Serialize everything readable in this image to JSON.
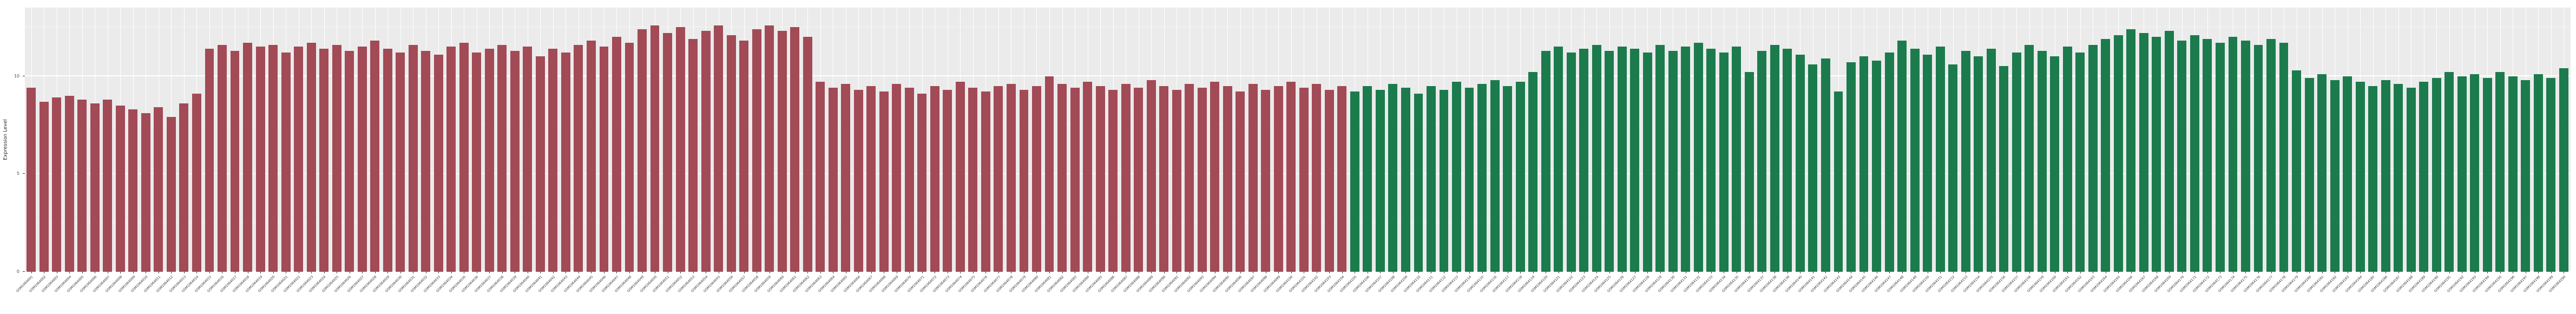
{
  "chart_data": {
    "type": "bar",
    "title": "",
    "xlabel": "",
    "ylabel": "Expression Level",
    "ylim": [
      0,
      13.5
    ],
    "yticks": [
      0,
      5,
      10
    ],
    "minor_yticks": [
      2.5,
      7.5,
      12.5
    ],
    "panel_background": "#EBEBEB",
    "grid_color": "#FFFFFF",
    "legend_position": "none",
    "bar_count": 200,
    "groups": [
      {
        "name": "sample-group-red",
        "color": "#A24A56",
        "count": 104
      },
      {
        "name": "sample-group-green",
        "color": "#1B7B4D",
        "count": 96
      }
    ],
    "categories": [
      "GSM1064001",
      "GSM1064002",
      "GSM1064003",
      "GSM1064004",
      "GSM1064005",
      "GSM1064006",
      "GSM1064007",
      "GSM1064008",
      "GSM1064009",
      "GSM1064010",
      "GSM1064011",
      "GSM1064012",
      "GSM1064013",
      "GSM1064014",
      "GSM1064015",
      "GSM1064016",
      "GSM1064017",
      "GSM1064018",
      "GSM1064019",
      "GSM1064020",
      "GSM1064021",
      "GSM1064022",
      "GSM1064023",
      "GSM1064024",
      "GSM1064025",
      "GSM1064026",
      "GSM1064027",
      "GSM1064028",
      "GSM1064029",
      "GSM1064030",
      "GSM1064031",
      "GSM1064032",
      "GSM1064033",
      "GSM1064034",
      "GSM1064035",
      "GSM1064036",
      "GSM1064037",
      "GSM1064038",
      "GSM1064039",
      "GSM1064040",
      "GSM1064041",
      "GSM1064042",
      "GSM1064043",
      "GSM1064044",
      "GSM1064045",
      "GSM1064046",
      "GSM1064047",
      "GSM1064048",
      "GSM1064049",
      "GSM1064050",
      "GSM1064051",
      "GSM1064052",
      "GSM1064053",
      "GSM1064054",
      "GSM1064055",
      "GSM1064056",
      "GSM1064057",
      "GSM1064058",
      "GSM1064059",
      "GSM1064060",
      "GSM1064061",
      "GSM1064062",
      "GSM1064063",
      "GSM1064064",
      "GSM1064065",
      "GSM1064066",
      "GSM1064067",
      "GSM1064068",
      "GSM1064069",
      "GSM1064070",
      "GSM1064071",
      "GSM1064072",
      "GSM1064073",
      "GSM1064074",
      "GSM1064075",
      "GSM1064076",
      "GSM1064077",
      "GSM1064078",
      "GSM1064079",
      "GSM1064080",
      "GSM1064081",
      "GSM1064082",
      "GSM1064083",
      "GSM1064084",
      "GSM1064085",
      "GSM1064086",
      "GSM1064087",
      "GSM1064088",
      "GSM1064089",
      "GSM1064090",
      "GSM1064091",
      "GSM1064092",
      "GSM1064093",
      "GSM1064094",
      "GSM1064095",
      "GSM1064096",
      "GSM1064097",
      "GSM1064098",
      "GSM1064099",
      "GSM1064100",
      "GSM1064101",
      "GSM1064102",
      "GSM1064103",
      "GSM1064104",
      "GSM1064105",
      "GSM1064106",
      "GSM1064107",
      "GSM1064108",
      "GSM1064109",
      "GSM1064110",
      "GSM1064111",
      "GSM1064112",
      "GSM1064113",
      "GSM1064114",
      "GSM1064115",
      "GSM1064116",
      "GSM1064117",
      "GSM1064118",
      "GSM1064119",
      "GSM1064120",
      "GSM1064121",
      "GSM1064122",
      "GSM1064123",
      "GSM1064124",
      "GSM1064125",
      "GSM1064126",
      "GSM1064127",
      "GSM1064128",
      "GSM1064129",
      "GSM1064130",
      "GSM1064131",
      "GSM1064132",
      "GSM1064133",
      "GSM1064134",
      "GSM1064135",
      "GSM1064136",
      "GSM1064137",
      "GSM1064138",
      "GSM1064139",
      "GSM1064140",
      "GSM1064141",
      "GSM1064142",
      "GSM1064143",
      "GSM1064144",
      "GSM1064145",
      "GSM1064146",
      "GSM1064147",
      "GSM1064148",
      "GSM1064149",
      "GSM1064150",
      "GSM1064151",
      "GSM1064152",
      "GSM1064153",
      "GSM1064154",
      "GSM1064155",
      "GSM1064156",
      "GSM1064157",
      "GSM1064158",
      "GSM1064159",
      "GSM1064160",
      "GSM1064161",
      "GSM1064162",
      "GSM1064163",
      "GSM1064164",
      "GSM1064165",
      "GSM1064166",
      "GSM1064167",
      "GSM1064168",
      "GSM1064169",
      "GSM1064170",
      "GSM1064171",
      "GSM1064172",
      "GSM1064173",
      "GSM1064174",
      "GSM1064175",
      "GSM1064176",
      "GSM1064177",
      "GSM1064178",
      "GSM1064179",
      "GSM1064180",
      "GSM1064181",
      "GSM1064182",
      "GSM1064183",
      "GSM1064184",
      "GSM1064185",
      "GSM1064186",
      "GSM1064187",
      "GSM1064188",
      "GSM1064189",
      "GSM1064190",
      "GSM1064191",
      "GSM1064192",
      "GSM1064193",
      "GSM1064194",
      "GSM1064195",
      "GSM1064196",
      "GSM1064197",
      "GSM1064198",
      "GSM1064199",
      "GSM1064200"
    ],
    "values": [
      9.4,
      8.7,
      8.9,
      9.0,
      8.8,
      8.6,
      8.8,
      8.5,
      8.3,
      8.1,
      8.4,
      7.9,
      8.6,
      9.1,
      11.4,
      11.6,
      11.3,
      11.7,
      11.5,
      11.6,
      11.2,
      11.5,
      11.7,
      11.4,
      11.6,
      11.3,
      11.5,
      11.8,
      11.4,
      11.2,
      11.6,
      11.3,
      11.1,
      11.5,
      11.7,
      11.2,
      11.4,
      11.6,
      11.3,
      11.5,
      11.0,
      11.4,
      11.2,
      11.6,
      11.8,
      11.5,
      12.0,
      11.7,
      12.4,
      12.6,
      12.2,
      12.5,
      11.9,
      12.3,
      12.6,
      12.1,
      11.8,
      12.4,
      12.6,
      12.3,
      12.5,
      12.0,
      9.7,
      9.4,
      9.6,
      9.3,
      9.5,
      9.2,
      9.6,
      9.4,
      9.1,
      9.5,
      9.3,
      9.7,
      9.4,
      9.2,
      9.5,
      9.6,
      9.3,
      9.5,
      10.0,
      9.6,
      9.4,
      9.7,
      9.5,
      9.3,
      9.6,
      9.4,
      9.8,
      9.5,
      9.3,
      9.6,
      9.4,
      9.7,
      9.5,
      9.2,
      9.6,
      9.3,
      9.5,
      9.7,
      9.4,
      9.6,
      9.3,
      9.5,
      9.2,
      9.5,
      9.3,
      9.6,
      9.4,
      9.1,
      9.5,
      9.3,
      9.7,
      9.4,
      9.6,
      9.8,
      9.5,
      9.7,
      10.2,
      11.3,
      11.5,
      11.2,
      11.4,
      11.6,
      11.3,
      11.5,
      11.4,
      11.2,
      11.6,
      11.3,
      11.5,
      11.7,
      11.4,
      11.2,
      11.5,
      10.2,
      11.3,
      11.6,
      11.4,
      11.1,
      10.6,
      10.9,
      9.2,
      10.7,
      11.0,
      10.8,
      11.2,
      11.8,
      11.4,
      11.1,
      11.5,
      10.6,
      11.3,
      11.0,
      11.4,
      10.5,
      11.2,
      11.6,
      11.3,
      11.0,
      11.5,
      11.2,
      11.6,
      11.9,
      12.1,
      12.4,
      12.2,
      12.0,
      12.3,
      11.8,
      12.1,
      11.9,
      11.7,
      12.0,
      11.8,
      11.6,
      11.9,
      11.7,
      10.3,
      9.9,
      10.1,
      9.8,
      10.0,
      9.7,
      9.5,
      9.8,
      9.6,
      9.4,
      9.7,
      9.9,
      10.2,
      10.0,
      10.1,
      9.9,
      10.2,
      10.0,
      9.8,
      10.1,
      9.9,
      10.4
    ]
  }
}
